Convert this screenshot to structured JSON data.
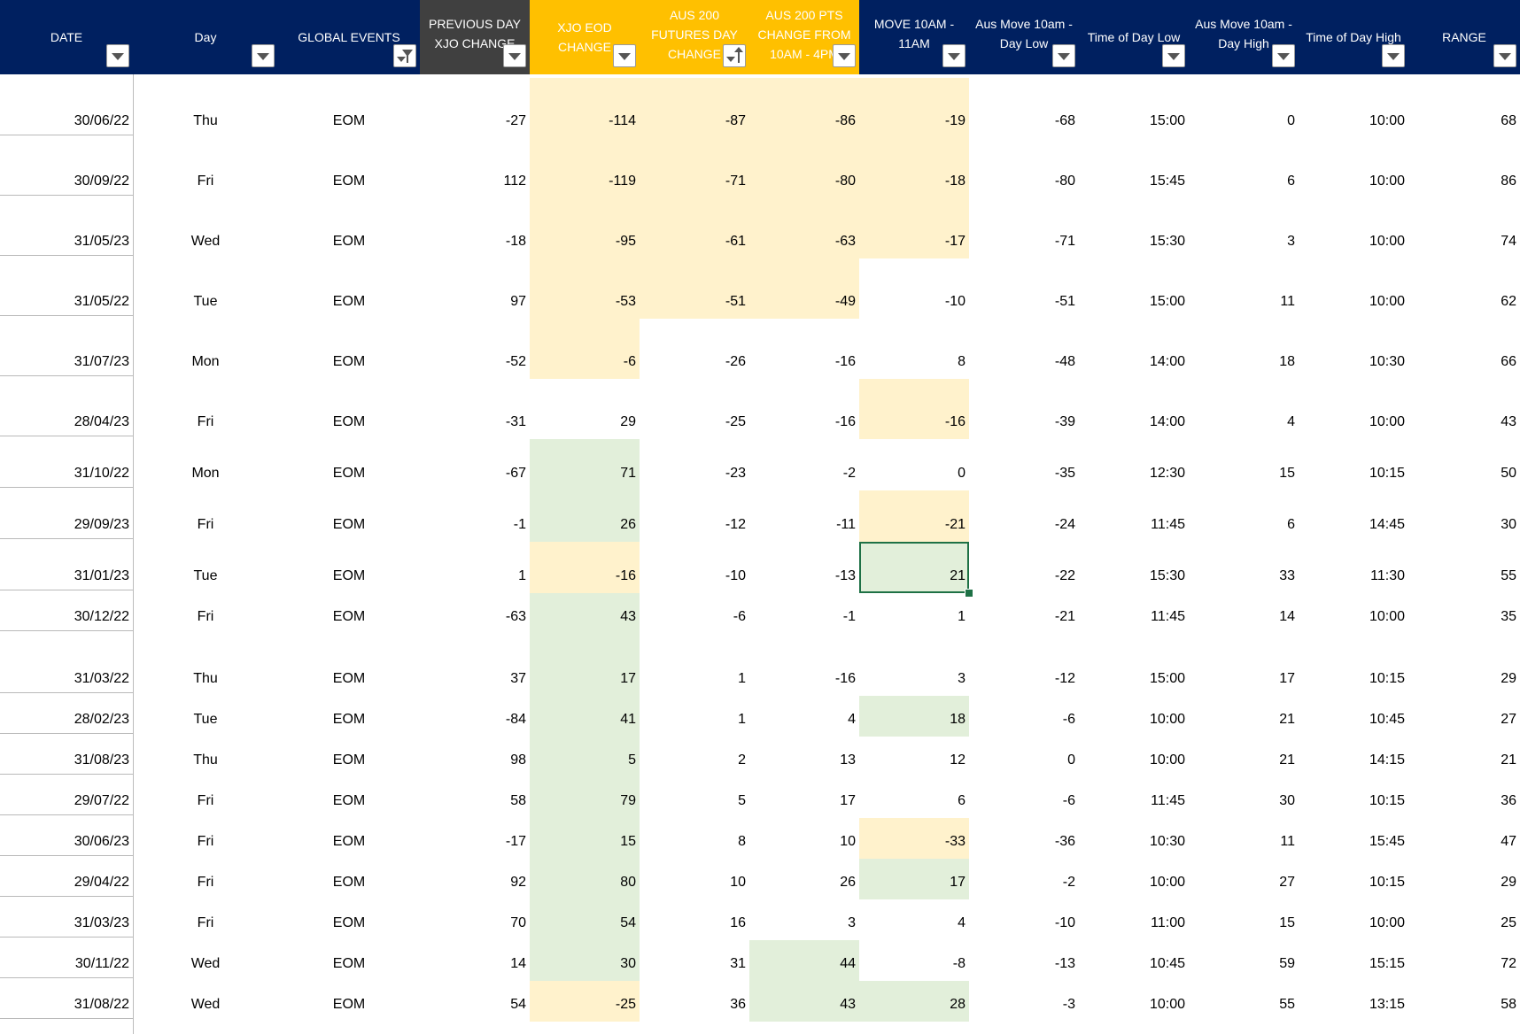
{
  "colors": {
    "header_navy": "#002060",
    "header_dark": "#404040",
    "header_gold": "#ffc000",
    "negative_fill": "#fff2cc",
    "positive_fill": "#e2efda",
    "selection": "#1e7145"
  },
  "columns": [
    {
      "key": "date",
      "label": "DATE",
      "filter": "dropdown"
    },
    {
      "key": "day",
      "label": "Day",
      "filter": "dropdown"
    },
    {
      "key": "global_events",
      "label": "GLOBAL EVENTS",
      "filter": "funnel"
    },
    {
      "key": "prev_day",
      "label": "PREVIOUS DAY\nXJO CHANGE",
      "filter": "dropdown"
    },
    {
      "key": "xjo_eod",
      "label": "XJO EOD CHANGE",
      "filter": "dropdown"
    },
    {
      "key": "aus200_day",
      "label": "AUS 200\nFUTURES DAY\nCHANGE",
      "filter": "sort-asc"
    },
    {
      "key": "aus200_pts",
      "label": "AUS 200 PTS\nCHANGE FROM\n10AM - 4PM",
      "filter": "dropdown"
    },
    {
      "key": "move_10_11",
      "label": "MOVE 10AM -\n11AM",
      "filter": "dropdown"
    },
    {
      "key": "move_low",
      "label": "Aus Move 10am -\nDay Low",
      "filter": "dropdown"
    },
    {
      "key": "time_low",
      "label": "Time of Day Low",
      "filter": "dropdown"
    },
    {
      "key": "move_high",
      "label": "Aus Move 10am -\nDay High",
      "filter": "dropdown"
    },
    {
      "key": "time_high",
      "label": "Time of Day High",
      "filter": "dropdown"
    },
    {
      "key": "range",
      "label": "RANGE",
      "filter": "dropdown"
    }
  ],
  "rows": [
    {
      "date": "30/06/22",
      "day": "Thu",
      "event": "EOM",
      "prev": "-27",
      "eod": "-114",
      "fut": "-87",
      "pts": "-86",
      "move": "-19",
      "low": "-68",
      "tlow": "15:00",
      "high": "0",
      "thigh": "10:00",
      "range": "68"
    },
    {
      "date": "30/09/22",
      "day": "Fri",
      "event": "EOM",
      "prev": "112",
      "eod": "-119",
      "fut": "-71",
      "pts": "-80",
      "move": "-18",
      "low": "-80",
      "tlow": "15:45",
      "high": "6",
      "thigh": "10:00",
      "range": "86"
    },
    {
      "date": "31/05/23",
      "day": "Wed",
      "event": "EOM",
      "prev": "-18",
      "eod": "-95",
      "fut": "-61",
      "pts": "-63",
      "move": "-17",
      "low": "-71",
      "tlow": "15:30",
      "high": "3",
      "thigh": "10:00",
      "range": "74"
    },
    {
      "date": "31/05/22",
      "day": "Tue",
      "event": "EOM",
      "prev": "97",
      "eod": "-53",
      "fut": "-51",
      "pts": "-49",
      "move": "-10",
      "low": "-51",
      "tlow": "15:00",
      "high": "11",
      "thigh": "10:00",
      "range": "62"
    },
    {
      "date": "31/07/23",
      "day": "Mon",
      "event": "EOM",
      "prev": "-52",
      "eod": "-6",
      "fut": "-26",
      "pts": "-16",
      "move": "8",
      "low": "-48",
      "tlow": "14:00",
      "high": "18",
      "thigh": "10:30",
      "range": "66"
    },
    {
      "date": "28/04/23",
      "day": "Fri",
      "event": "EOM",
      "prev": "-31",
      "eod": "29",
      "fut": "-25",
      "pts": "-16",
      "move": "-16",
      "low": "-39",
      "tlow": "14:00",
      "high": "4",
      "thigh": "10:00",
      "range": "43"
    },
    {
      "date": "31/10/22",
      "day": "Mon",
      "event": "EOM",
      "prev": "-67",
      "eod": "71",
      "fut": "-23",
      "pts": "-2",
      "move": "0",
      "low": "-35",
      "tlow": "12:30",
      "high": "15",
      "thigh": "10:15",
      "range": "50"
    },
    {
      "date": "29/09/23",
      "day": "Fri",
      "event": "EOM",
      "prev": "-1",
      "eod": "26",
      "fut": "-12",
      "pts": "-11",
      "move": "-21",
      "low": "-24",
      "tlow": "11:45",
      "high": "6",
      "thigh": "14:45",
      "range": "30"
    },
    {
      "date": "31/01/23",
      "day": "Tue",
      "event": "EOM",
      "prev": "1",
      "eod": "-16",
      "fut": "-10",
      "pts": "-13",
      "move": "21",
      "low": "-22",
      "tlow": "15:30",
      "high": "33",
      "thigh": "11:30",
      "range": "55"
    },
    {
      "date": "30/12/22",
      "day": "Fri",
      "event": "EOM",
      "prev": "-63",
      "eod": "43",
      "fut": "-6",
      "pts": "-1",
      "move": "1",
      "low": "-21",
      "tlow": "11:45",
      "high": "14",
      "thigh": "10:00",
      "range": "35"
    },
    {
      "date": "31/03/22",
      "day": "Thu",
      "event": "EOM",
      "prev": "37",
      "eod": "17",
      "fut": "1",
      "pts": "-16",
      "move": "3",
      "low": "-12",
      "tlow": "15:00",
      "high": "17",
      "thigh": "10:15",
      "range": "29"
    },
    {
      "date": "28/02/23",
      "day": "Tue",
      "event": "EOM",
      "prev": "-84",
      "eod": "41",
      "fut": "1",
      "pts": "4",
      "move": "18",
      "low": "-6",
      "tlow": "10:00",
      "high": "21",
      "thigh": "10:45",
      "range": "27"
    },
    {
      "date": "31/08/23",
      "day": "Thu",
      "event": "EOM",
      "prev": "98",
      "eod": "5",
      "fut": "2",
      "pts": "13",
      "move": "12",
      "low": "0",
      "tlow": "10:00",
      "high": "21",
      "thigh": "14:15",
      "range": "21"
    },
    {
      "date": "29/07/22",
      "day": "Fri",
      "event": "EOM",
      "prev": "58",
      "eod": "79",
      "fut": "5",
      "pts": "17",
      "move": "6",
      "low": "-6",
      "tlow": "11:45",
      "high": "30",
      "thigh": "10:15",
      "range": "36"
    },
    {
      "date": "30/06/23",
      "day": "Fri",
      "event": "EOM",
      "prev": "-17",
      "eod": "15",
      "fut": "8",
      "pts": "10",
      "move": "-33",
      "low": "-36",
      "tlow": "10:30",
      "high": "11",
      "thigh": "15:45",
      "range": "47"
    },
    {
      "date": "29/04/22",
      "day": "Fri",
      "event": "EOM",
      "prev": "92",
      "eod": "80",
      "fut": "10",
      "pts": "26",
      "move": "17",
      "low": "-2",
      "tlow": "10:00",
      "high": "27",
      "thigh": "10:15",
      "range": "29"
    },
    {
      "date": "31/03/23",
      "day": "Fri",
      "event": "EOM",
      "prev": "70",
      "eod": "54",
      "fut": "16",
      "pts": "3",
      "move": "4",
      "low": "-10",
      "tlow": "11:00",
      "high": "15",
      "thigh": "10:00",
      "range": "25"
    },
    {
      "date": "30/11/22",
      "day": "Wed",
      "event": "EOM",
      "prev": "14",
      "eod": "30",
      "fut": "31",
      "pts": "44",
      "move": "-8",
      "low": "-13",
      "tlow": "10:45",
      "high": "59",
      "thigh": "15:15",
      "range": "72"
    },
    {
      "date": "31/08/22",
      "day": "Wed",
      "event": "EOM",
      "prev": "54",
      "eod": "-25",
      "fut": "36",
      "pts": "43",
      "move": "28",
      "low": "-3",
      "tlow": "10:00",
      "high": "55",
      "thigh": "13:15",
      "range": "58"
    }
  ]
}
